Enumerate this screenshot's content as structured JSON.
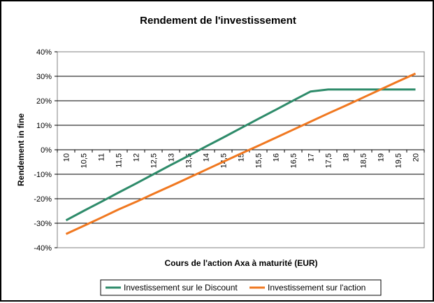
{
  "chart_data": {
    "type": "line",
    "title": "Rendement de l'investissement",
    "xlabel": "Cours de l'action Axa à maturité (EUR)",
    "ylabel": "Rendement in fine",
    "categories": [
      "10",
      "10,5",
      "11",
      "11,5",
      "12",
      "12,5",
      "13",
      "13,5",
      "14",
      "14,5",
      "15",
      "15,5",
      "16",
      "16,5",
      "17",
      "17,5",
      "18",
      "18,5",
      "19",
      "19,5",
      "20"
    ],
    "x_values": [
      10,
      10.5,
      11,
      11.5,
      12,
      12.5,
      13,
      13.5,
      14,
      14.5,
      15,
      15.5,
      16,
      16.5,
      17,
      17.5,
      18,
      18.5,
      19,
      19.5,
      20
    ],
    "y_ticks": [
      "-40%",
      "-30%",
      "-20%",
      "-10%",
      "0%",
      "10%",
      "20%",
      "30%",
      "40%"
    ],
    "y_tick_values": [
      -40,
      -30,
      -20,
      -10,
      0,
      10,
      20,
      30,
      40
    ],
    "ylim": [
      -40,
      40
    ],
    "grid": "horizontal",
    "legend_position": "bottom",
    "series": [
      {
        "name": "Investissement sur le Discount",
        "color": "#2E8B6A",
        "values": [
          -28.8,
          -25.0,
          -21.3,
          -17.5,
          -13.8,
          -10.0,
          -6.2,
          -2.5,
          1.3,
          5.0,
          8.8,
          12.6,
          16.3,
          20.1,
          23.8,
          24.6,
          24.6,
          24.6,
          24.6,
          24.6,
          24.6
        ]
      },
      {
        "name": "Investissement sur l'action",
        "color": "#F07820",
        "values": [
          -34.4,
          -31.1,
          -27.8,
          -24.4,
          -21.3,
          -18.0,
          -14.8,
          -11.5,
          -8.2,
          -4.9,
          -1.6,
          1.6,
          4.9,
          8.2,
          11.5,
          14.8,
          18.0,
          21.3,
          24.6,
          27.9,
          31.1
        ]
      }
    ]
  }
}
